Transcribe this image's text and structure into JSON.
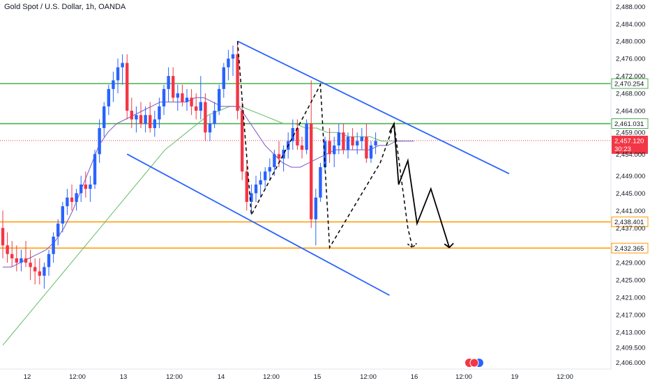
{
  "header": {
    "title": "Gold Spot / U.S. Dollar, 1h, OANDA"
  },
  "chart_data": {
    "type": "candlestick",
    "symbol": "Gold Spot / U.S. Dollar",
    "timeframe": "1h",
    "source": "OANDA",
    "ylim": [
      2404.5,
      2489.5
    ],
    "y_ticks": [
      "2,488.000",
      "2,484.000",
      "2,480.000",
      "2,476.000",
      "2,472.000",
      "2,468.000",
      "2,464.000",
      "2,459.000",
      "2,454.000",
      "2,449.000",
      "2,445.000",
      "2,441.000",
      "2,437.000",
      "2,429.000",
      "2,425.000",
      "2,421.000",
      "2,417.000",
      "2,413.000",
      "2,409.500",
      "2,406.000"
    ],
    "x_ticks": [
      "12",
      "12:00",
      "13",
      "12:00",
      "14",
      "12:00",
      "15",
      "12:00",
      "16",
      "12:00",
      "19",
      "12:00"
    ],
    "horizontal_levels": [
      {
        "label": "2,470.254",
        "value": 2470.254,
        "color": "#4caf50"
      },
      {
        "label": "2,461.031",
        "value": 2461.031,
        "color": "#4caf50"
      },
      {
        "label": "2,438.401",
        "value": 2438.401,
        "color": "#ff9800"
      },
      {
        "label": "2,432.365",
        "value": 2432.365,
        "color": "#ff9800"
      }
    ],
    "last_price": {
      "label": "2,457.120",
      "value": 2457.12,
      "countdown": "30:23",
      "color": "#f23645"
    },
    "colors": {
      "up": "#2962ff",
      "down": "#f23645",
      "ma_fast": "#7e57c2",
      "ma_slow": "#66bb6a",
      "trendline": "#2962ff",
      "projection": "#000000"
    },
    "candles": [
      {
        "o": 2437,
        "h": 2441,
        "l": 2430,
        "c": 2433
      },
      {
        "o": 2433,
        "h": 2436,
        "l": 2429,
        "c": 2431
      },
      {
        "o": 2431,
        "h": 2434,
        "l": 2428,
        "c": 2430
      },
      {
        "o": 2430,
        "h": 2433,
        "l": 2427,
        "c": 2429
      },
      {
        "o": 2429,
        "h": 2432,
        "l": 2427,
        "c": 2430
      },
      {
        "o": 2430,
        "h": 2434,
        "l": 2428,
        "c": 2429
      },
      {
        "o": 2429,
        "h": 2432,
        "l": 2425,
        "c": 2428
      },
      {
        "o": 2428,
        "h": 2430,
        "l": 2424,
        "c": 2427
      },
      {
        "o": 2427,
        "h": 2430,
        "l": 2424,
        "c": 2426
      },
      {
        "o": 2426,
        "h": 2429,
        "l": 2423,
        "c": 2428
      },
      {
        "o": 2428,
        "h": 2432,
        "l": 2426,
        "c": 2431
      },
      {
        "o": 2431,
        "h": 2436,
        "l": 2429,
        "c": 2435
      },
      {
        "o": 2435,
        "h": 2439,
        "l": 2433,
        "c": 2438
      },
      {
        "o": 2438,
        "h": 2443,
        "l": 2436,
        "c": 2442
      },
      {
        "o": 2442,
        "h": 2446,
        "l": 2440,
        "c": 2444
      },
      {
        "o": 2444,
        "h": 2447,
        "l": 2441,
        "c": 2443
      },
      {
        "o": 2443,
        "h": 2446,
        "l": 2441,
        "c": 2445
      },
      {
        "o": 2445,
        "h": 2449,
        "l": 2443,
        "c": 2447
      },
      {
        "o": 2447,
        "h": 2450,
        "l": 2444,
        "c": 2446
      },
      {
        "o": 2446,
        "h": 2449,
        "l": 2443,
        "c": 2447
      },
      {
        "o": 2447,
        "h": 2455,
        "l": 2446,
        "c": 2454
      },
      {
        "o": 2454,
        "h": 2462,
        "l": 2452,
        "c": 2460
      },
      {
        "o": 2460,
        "h": 2466,
        "l": 2458,
        "c": 2465
      },
      {
        "o": 2465,
        "h": 2470,
        "l": 2463,
        "c": 2469
      },
      {
        "o": 2469,
        "h": 2473,
        "l": 2466,
        "c": 2471
      },
      {
        "o": 2471,
        "h": 2476,
        "l": 2468,
        "c": 2474
      },
      {
        "o": 2474,
        "h": 2477,
        "l": 2470,
        "c": 2475
      },
      {
        "o": 2475,
        "h": 2477,
        "l": 2462,
        "c": 2464
      },
      {
        "o": 2464,
        "h": 2467,
        "l": 2460,
        "c": 2462
      },
      {
        "o": 2462,
        "h": 2465,
        "l": 2459,
        "c": 2463
      },
      {
        "o": 2463,
        "h": 2466,
        "l": 2460,
        "c": 2461
      },
      {
        "o": 2461,
        "h": 2465,
        "l": 2459,
        "c": 2463
      },
      {
        "o": 2463,
        "h": 2466,
        "l": 2459,
        "c": 2460
      },
      {
        "o": 2460,
        "h": 2464,
        "l": 2458,
        "c": 2462
      },
      {
        "o": 2462,
        "h": 2467,
        "l": 2460,
        "c": 2465
      },
      {
        "o": 2465,
        "h": 2470,
        "l": 2463,
        "c": 2469
      },
      {
        "o": 2469,
        "h": 2474,
        "l": 2466,
        "c": 2472
      },
      {
        "o": 2472,
        "h": 2474,
        "l": 2466,
        "c": 2467
      },
      {
        "o": 2467,
        "h": 2470,
        "l": 2464,
        "c": 2468
      },
      {
        "o": 2468,
        "h": 2470,
        "l": 2465,
        "c": 2466
      },
      {
        "o": 2466,
        "h": 2469,
        "l": 2464,
        "c": 2467
      },
      {
        "o": 2467,
        "h": 2469,
        "l": 2463,
        "c": 2465
      },
      {
        "o": 2465,
        "h": 2468,
        "l": 2462,
        "c": 2464
      },
      {
        "o": 2464,
        "h": 2472,
        "l": 2462,
        "c": 2466
      },
      {
        "o": 2466,
        "h": 2468,
        "l": 2457,
        "c": 2459
      },
      {
        "o": 2459,
        "h": 2463,
        "l": 2457,
        "c": 2461
      },
      {
        "o": 2461,
        "h": 2466,
        "l": 2460,
        "c": 2464
      },
      {
        "o": 2464,
        "h": 2470,
        "l": 2463,
        "c": 2469
      },
      {
        "o": 2469,
        "h": 2475,
        "l": 2467,
        "c": 2474
      },
      {
        "o": 2474,
        "h": 2478,
        "l": 2471,
        "c": 2476
      },
      {
        "o": 2476,
        "h": 2479,
        "l": 2472,
        "c": 2477
      },
      {
        "o": 2477,
        "h": 2480,
        "l": 2462,
        "c": 2464
      },
      {
        "o": 2464,
        "h": 2466,
        "l": 2448,
        "c": 2450
      },
      {
        "o": 2450,
        "h": 2452,
        "l": 2441,
        "c": 2443
      },
      {
        "o": 2443,
        "h": 2447,
        "l": 2440,
        "c": 2445
      },
      {
        "o": 2445,
        "h": 2449,
        "l": 2443,
        "c": 2447
      },
      {
        "o": 2447,
        "h": 2450,
        "l": 2444,
        "c": 2448
      },
      {
        "o": 2448,
        "h": 2451,
        "l": 2446,
        "c": 2450
      },
      {
        "o": 2450,
        "h": 2453,
        "l": 2448,
        "c": 2451
      },
      {
        "o": 2451,
        "h": 2455,
        "l": 2449,
        "c": 2454
      },
      {
        "o": 2454,
        "h": 2457,
        "l": 2451,
        "c": 2453
      },
      {
        "o": 2453,
        "h": 2456,
        "l": 2450,
        "c": 2455
      },
      {
        "o": 2455,
        "h": 2459,
        "l": 2453,
        "c": 2457
      },
      {
        "o": 2457,
        "h": 2462,
        "l": 2455,
        "c": 2460
      },
      {
        "o": 2460,
        "h": 2462,
        "l": 2455,
        "c": 2456
      },
      {
        "o": 2456,
        "h": 2458,
        "l": 2453,
        "c": 2455
      },
      {
        "o": 2455,
        "h": 2462,
        "l": 2454,
        "c": 2461
      },
      {
        "o": 2461,
        "h": 2471,
        "l": 2437,
        "c": 2439
      },
      {
        "o": 2439,
        "h": 2446,
        "l": 2433,
        "c": 2444
      },
      {
        "o": 2444,
        "h": 2452,
        "l": 2443,
        "c": 2451
      },
      {
        "o": 2451,
        "h": 2458,
        "l": 2450,
        "c": 2457
      },
      {
        "o": 2457,
        "h": 2460,
        "l": 2452,
        "c": 2454
      },
      {
        "o": 2454,
        "h": 2458,
        "l": 2451,
        "c": 2456
      },
      {
        "o": 2456,
        "h": 2461,
        "l": 2454,
        "c": 2459
      },
      {
        "o": 2459,
        "h": 2461,
        "l": 2454,
        "c": 2455
      },
      {
        "o": 2455,
        "h": 2459,
        "l": 2453,
        "c": 2458
      },
      {
        "o": 2458,
        "h": 2460,
        "l": 2455,
        "c": 2456
      },
      {
        "o": 2456,
        "h": 2459,
        "l": 2454,
        "c": 2457
      },
      {
        "o": 2457,
        "h": 2460,
        "l": 2455,
        "c": 2458
      },
      {
        "o": 2458,
        "h": 2461,
        "l": 2452,
        "c": 2453
      },
      {
        "o": 2453,
        "h": 2457,
        "l": 2452,
        "c": 2456
      },
      {
        "o": 2456,
        "h": 2459,
        "l": 2454,
        "c": 2457
      }
    ],
    "ma_fast": [
      2428,
      2428,
      2429,
      2430,
      2431,
      2432,
      2434,
      2437,
      2441,
      2446,
      2451,
      2456,
      2459,
      2461,
      2462,
      2463,
      2464,
      2465,
      2466,
      2466,
      2466,
      2466,
      2467,
      2467,
      2466,
      2465,
      2465,
      2465,
      2462,
      2459,
      2456,
      2454,
      2452,
      2451,
      2451,
      2452,
      2453,
      2454,
      2455,
      2455,
      2455,
      2455,
      2455,
      2456,
      2456,
      2457,
      2457,
      2457
    ],
    "ma_slow": [
      2410,
      2413,
      2416,
      2419,
      2422,
      2425,
      2428,
      2431,
      2434,
      2437,
      2440,
      2443,
      2446,
      2449,
      2452,
      2455,
      2457,
      2459,
      2461,
      2463,
      2464,
      2465,
      2465,
      2464,
      2463,
      2462,
      2461,
      2461,
      2460,
      2460,
      2459,
      2459,
      2458,
      2458,
      2458,
      2457,
      2457,
      2457
    ],
    "descending_channel": {
      "upper": [
        {
          "x_idx": 51,
          "y": 2480
        },
        {
          "x_idx": 110,
          "y": 2449.5
        }
      ],
      "lower": [
        {
          "x_idx": 27,
          "y": 2454
        },
        {
          "x_idx": 84,
          "y": 2421.5
        }
      ]
    },
    "projection_path": [
      {
        "x_idx": 51,
        "y": 2480
      },
      {
        "x_idx": 54,
        "y": 2440
      },
      {
        "x_idx": 69,
        "y": 2470
      },
      {
        "x_idx": 71,
        "y": 2432.5
      },
      {
        "x_idx": 82,
        "y": 2452
      },
      {
        "x_idx": 85,
        "y": 2461
      },
      {
        "x_idx": 88,
        "y": 2437
      },
      {
        "x_idx": 89,
        "y": 2432.5
      }
    ],
    "projection_solid": [
      {
        "x_idx": 84,
        "y": 2459
      },
      {
        "x_idx": 85,
        "y": 2461
      },
      {
        "x_idx": 86,
        "y": 2447
      },
      {
        "x_idx": 88,
        "y": 2452.5
      },
      {
        "x_idx": 90,
        "y": 2438
      },
      {
        "x_idx": 93,
        "y": 2446
      },
      {
        "x_idx": 97,
        "y": 2432.5
      }
    ]
  }
}
